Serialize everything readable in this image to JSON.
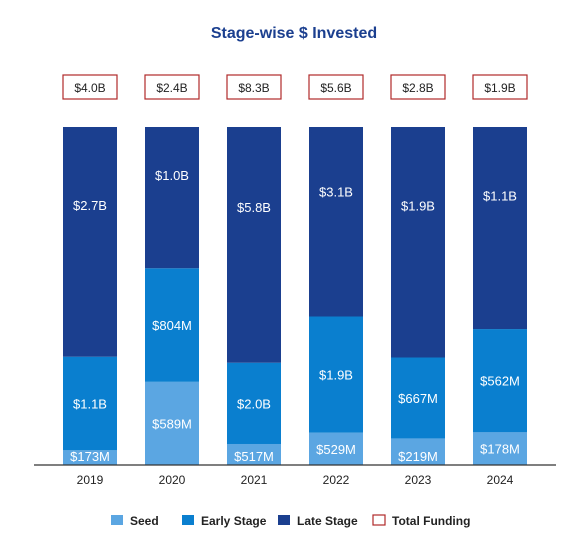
{
  "colors": {
    "seed": "#5ba6e2",
    "early": "#0a7fcf",
    "late": "#1b3f8f",
    "total_border": "#b02a2a",
    "title": "#1b3f8f",
    "text_dark": "#222222",
    "bar_text": "#ffffff"
  },
  "chart_data": {
    "type": "bar",
    "stacked": true,
    "normalized": true,
    "title": "Stage-wise $ Invested",
    "xlabel": "",
    "ylabel": "",
    "legend_position": "bottom",
    "categories": [
      "2019",
      "2020",
      "2021",
      "2022",
      "2023",
      "2024"
    ],
    "series": [
      {
        "name": "Seed",
        "key": "seed",
        "values": [
          0.173,
          0.589,
          0.517,
          0.529,
          0.219,
          0.178
        ],
        "labels": [
          "$173M",
          "$589M",
          "$517M",
          "$529M",
          "$219M",
          "$178M"
        ]
      },
      {
        "name": "Early Stage",
        "key": "early",
        "values": [
          1.1,
          0.804,
          2.0,
          1.9,
          0.667,
          0.562
        ],
        "labels": [
          "$1.1B",
          "$804M",
          "$2.0B",
          "$1.9B",
          "$667M",
          "$562M"
        ]
      },
      {
        "name": "Late Stage",
        "key": "late",
        "values": [
          2.7,
          1.0,
          5.8,
          3.1,
          1.9,
          1.1
        ],
        "labels": [
          "$2.7B",
          "$1.0B",
          "$5.8B",
          "$3.1B",
          "$1.9B",
          "$1.1B"
        ]
      }
    ],
    "totals": {
      "name": "Total Funding",
      "values": [
        4.0,
        2.4,
        8.3,
        5.6,
        2.8,
        1.9
      ],
      "labels": [
        "$4.0B",
        "$2.4B",
        "$8.3B",
        "$5.6B",
        "$2.8B",
        "$1.9B"
      ]
    }
  }
}
